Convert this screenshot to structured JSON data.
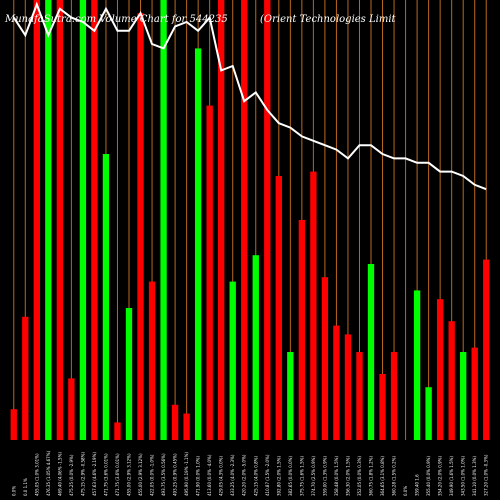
{
  "chart_data": {
    "type": "bar",
    "title_left": "MunafaSutra.com Volume Chart for 544235",
    "title_right": "(Orient Technologies Limit",
    "volumes": [
      {
        "value": 0.07,
        "color": "#ff0000",
        "label": "0.0%"
      },
      {
        "value": 0.28,
        "color": "#ff0000",
        "label": "0.0 1.1%"
      },
      {
        "value": 1.0,
        "color": "#ff0000",
        "label": "455.05 (1.0% 3.01%)"
      },
      {
        "value": 1.0,
        "color": "#00ff00",
        "label": "476.35 (1.05% 4.67%)"
      },
      {
        "value": 1.0,
        "color": "#ff0000",
        "label": "469.40 (4.06% -1.5%)"
      },
      {
        "value": 0.14,
        "color": "#ff0000",
        "label": "475.25 (0.0% -2.9%)"
      },
      {
        "value": 1.0,
        "color": "#00ff00",
        "label": "475.15 (2.9% -0.58%)"
      },
      {
        "value": 1.0,
        "color": "#ff0000",
        "label": "457.63 (4.6% -2.19%)"
      },
      {
        "value": 0.65,
        "color": "#00ff00",
        "label": "471.75 (3.6% 0.01%)"
      },
      {
        "value": 0.04,
        "color": "#ff0000",
        "label": "471.75 (3.6% 0.01%)"
      },
      {
        "value": 0.3,
        "color": "#00ff00",
        "label": "455.00 (2.9% 3.12%)"
      },
      {
        "value": 0.97,
        "color": "#ff0000",
        "label": "455.00 (2.9% 3.12%)"
      },
      {
        "value": 0.36,
        "color": "#ff0000",
        "label": "422.05 (0.0% -1.0%)"
      },
      {
        "value": 1.0,
        "color": "#00ff00",
        "label": "493.75 (3.5% 0.56%)"
      },
      {
        "value": 0.08,
        "color": "#ff0000",
        "label": "493.25 (0.9% 0.45%)"
      },
      {
        "value": 0.06,
        "color": "#ff0000",
        "label": "495.90 (0.19% -1.1%)"
      },
      {
        "value": 0.89,
        "color": "#00ff00",
        "label": "471.90 (0.0% 1.0%)"
      },
      {
        "value": 0.76,
        "color": "#ff0000",
        "label": "413.60 (0.0% -4.0%)"
      },
      {
        "value": 1.0,
        "color": "#ff0000",
        "label": "429.05 (4.3% 0.0%)"
      },
      {
        "value": 0.36,
        "color": "#00ff00",
        "label": "433.25 (4.0% -2.3%)"
      },
      {
        "value": 1.0,
        "color": "#ff0000",
        "label": "420.20 (2.0% -5.0%)"
      },
      {
        "value": 0.42,
        "color": "#00ff00",
        "label": "425.15 (4.0% 0.8%)"
      },
      {
        "value": 1.0,
        "color": "#ff0000",
        "label": "410.87 (1.5% -2.0%)"
      },
      {
        "value": 0.6,
        "color": "#ff0000",
        "label": "392.80 (2.0% 1.5%)"
      },
      {
        "value": 0.2,
        "color": "#00ff00",
        "label": "382.65 (0.0% 0.0%)"
      },
      {
        "value": 0.5,
        "color": "#ff0000",
        "label": "375.75 (1.6% 1.5%)"
      },
      {
        "value": 0.61,
        "color": "#ff0000",
        "label": "374.70 (2.5% 0.9%)"
      },
      {
        "value": 0.37,
        "color": "#ff0000",
        "label": "359.00 (1.3% 0.9%)"
      },
      {
        "value": 0.26,
        "color": "#ff0000",
        "label": "358.48 (0.0% 1.5%)"
      },
      {
        "value": 0.24,
        "color": "#ff0000",
        "label": "356.30 (2.0% 1.5%)"
      },
      {
        "value": 0.2,
        "color": "#ff0000",
        "label": "352.05 (0.0% 0.3%)"
      },
      {
        "value": 0.4,
        "color": "#00ff00",
        "label": "360.75 (1.8% 1.2%)"
      },
      {
        "value": 0.15,
        "color": "#ff0000",
        "label": "364.65 (3.1% 0.8%)"
      },
      {
        "value": 0.2,
        "color": "#ff0000",
        "label": "360.28 (1.5% 0.2%)"
      },
      {
        "value": 0.0,
        "color": "#ff0000",
        "label": "0.0%"
      },
      {
        "value": 0.34,
        "color": "#00ff00",
        "label": "359.40 1.6"
      },
      {
        "value": 0.12,
        "color": "#00ff00",
        "label": "355.40 (0.0% 0.9%)"
      },
      {
        "value": 0.32,
        "color": "#ff0000",
        "label": "354.20 (2.0% 0.9%)"
      },
      {
        "value": 0.27,
        "color": "#ff0000",
        "label": "349.90 (1.6% 1.5%)"
      },
      {
        "value": 0.2,
        "color": "#00ff00",
        "label": "343.50 (1.0% 1.0%)"
      },
      {
        "value": 0.21,
        "color": "#ff0000",
        "label": "341.10 (0.0% 1.3%)"
      },
      {
        "value": 0.41,
        "color": "#ff0000",
        "label": "327.20 (1.0% -0.3%)"
      }
    ],
    "price_line": [
      0.96,
      0.92,
      0.99,
      0.92,
      0.98,
      0.96,
      0.95,
      0.93,
      0.98,
      0.93,
      0.93,
      0.97,
      0.9,
      0.89,
      0.94,
      0.95,
      0.93,
      0.96,
      0.84,
      0.85,
      0.77,
      0.79,
      0.75,
      0.72,
      0.71,
      0.69,
      0.68,
      0.67,
      0.66,
      0.64,
      0.67,
      0.67,
      0.65,
      0.64,
      0.64,
      0.63,
      0.63,
      0.61,
      0.61,
      0.6,
      0.58,
      0.57
    ],
    "colors": {
      "background": "#000000",
      "up": "#00ff00",
      "down": "#ff0000",
      "grid": "#b8681e",
      "line": "#ffffff"
    }
  }
}
